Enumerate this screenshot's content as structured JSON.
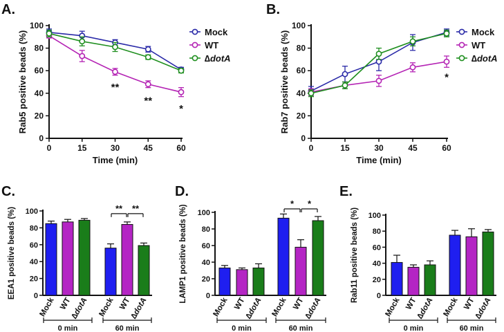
{
  "colors": {
    "mock": "#2a2aa8",
    "wt": "#b423b4",
    "dotA": "#1f8f1f",
    "bar_mock": "#1f1ff0",
    "bar_wt": "#b425c4",
    "bar_dotA": "#1a7d1a",
    "ink": "#111111"
  },
  "chart_data": [
    {
      "id": "A",
      "panel_label": "A.",
      "type": "line",
      "xlabel": "Time (min)",
      "ylabel": "Rab5 positive beads (%)",
      "x": [
        0,
        15,
        30,
        45,
        60
      ],
      "xticks": [
        "0",
        "15",
        "30",
        "45",
        "60"
      ],
      "yticks": [
        "0",
        "20",
        "40",
        "60",
        "80",
        "100"
      ],
      "xlim": [
        0,
        60
      ],
      "ylim": [
        0,
        100
      ],
      "series": [
        {
          "key": "mock",
          "name": "Mock",
          "values": [
            94,
            91,
            85,
            79,
            61
          ],
          "err": [
            3,
            4,
            2.5,
            2.5,
            2
          ]
        },
        {
          "key": "wt",
          "name": "WT",
          "values": [
            91,
            73,
            59,
            48,
            41
          ],
          "err": [
            2,
            5,
            3,
            3,
            4
          ]
        },
        {
          "key": "dotA",
          "name": "∆dotA",
          "values": [
            93,
            86,
            81,
            72,
            60
          ],
          "err": [
            3,
            4,
            4,
            2,
            2
          ]
        }
      ],
      "annotations": [
        {
          "x": 30,
          "y": 46,
          "text": "**"
        },
        {
          "x": 45,
          "y": 34,
          "text": "**"
        },
        {
          "x": 60,
          "y": 27,
          "text": "*"
        }
      ],
      "legend_position": "top-right"
    },
    {
      "id": "B",
      "panel_label": "B.",
      "type": "line",
      "xlabel": "Time (min)",
      "ylabel": "Rab7 positive beads (%)",
      "x": [
        0,
        15,
        30,
        45,
        60
      ],
      "xticks": [
        "0",
        "15",
        "30",
        "45",
        "60"
      ],
      "yticks": [
        "0",
        "20",
        "40",
        "60",
        "80",
        "100"
      ],
      "xlim": [
        0,
        60
      ],
      "ylim": [
        0,
        100
      ],
      "series": [
        {
          "key": "mock",
          "name": "Mock",
          "values": [
            42,
            57,
            68,
            85,
            94
          ],
          "err": [
            4,
            7,
            8,
            7,
            3
          ]
        },
        {
          "key": "wt",
          "name": "WT",
          "values": [
            41,
            47,
            51,
            63,
            68
          ],
          "err": [
            3,
            3,
            5,
            4,
            5
          ]
        },
        {
          "key": "dotA",
          "name": "∆dotA",
          "values": [
            40,
            47,
            75,
            86,
            93
          ],
          "err": [
            3,
            3,
            5,
            4,
            3
          ]
        }
      ],
      "annotations": [
        {
          "x": 60,
          "y": 55,
          "text": "*"
        }
      ],
      "legend_position": "top-right"
    },
    {
      "id": "C",
      "panel_label": "C.",
      "type": "bar",
      "ylabel": "EEA1 positive beads (%)",
      "yticks": [
        "0",
        "20",
        "40",
        "60",
        "80",
        "100"
      ],
      "ylim": [
        0,
        100
      ],
      "groups": [
        {
          "label": "0 min",
          "bars": [
            {
              "key": "mock",
              "label": "Mock",
              "value": 85,
              "err": 3
            },
            {
              "key": "wt",
              "label": "WT",
              "value": 87,
              "err": 3
            },
            {
              "key": "dotA",
              "label": "∆dotA",
              "value": 89,
              "err": 2
            }
          ]
        },
        {
          "label": "60 min",
          "bars": [
            {
              "key": "mock",
              "label": "Mock",
              "value": 56,
              "err": 5
            },
            {
              "key": "wt",
              "label": "WT",
              "value": 84,
              "err": 3
            },
            {
              "key": "dotA",
              "label": "∆dotA",
              "value": 59,
              "err": 3
            }
          ]
        }
      ],
      "significance": [
        {
          "from": 0,
          "to": 1,
          "text": "**"
        },
        {
          "from": 1,
          "to": 2,
          "text": "**"
        }
      ]
    },
    {
      "id": "D",
      "panel_label": "D.",
      "type": "bar",
      "ylabel": "LAMP1 positive beads (%)",
      "yticks": [
        "0",
        "20",
        "40",
        "60",
        "80",
        "100"
      ],
      "ylim": [
        0,
        100
      ],
      "groups": [
        {
          "label": "0 min",
          "bars": [
            {
              "key": "mock",
              "label": "Mock",
              "value": 33,
              "err": 3
            },
            {
              "key": "wt",
              "label": "WT",
              "value": 31,
              "err": 2
            },
            {
              "key": "dotA",
              "label": "∆dotA",
              "value": 33,
              "err": 5
            }
          ]
        },
        {
          "label": "60 min",
          "bars": [
            {
              "key": "mock",
              "label": "Mock",
              "value": 93,
              "err": 5
            },
            {
              "key": "wt",
              "label": "WT",
              "value": 58,
              "err": 9
            },
            {
              "key": "dotA",
              "label": "∆dotA",
              "value": 90,
              "err": 5
            }
          ]
        }
      ],
      "significance": [
        {
          "from": 0,
          "to": 1,
          "text": "*"
        },
        {
          "from": 1,
          "to": 2,
          "text": "*"
        }
      ]
    },
    {
      "id": "E",
      "panel_label": "E.",
      "type": "bar",
      "ylabel": "Rab11 positive beads (%)",
      "yticks": [
        "0",
        "20",
        "40",
        "60",
        "80",
        "100"
      ],
      "ylim": [
        0,
        100
      ],
      "groups": [
        {
          "label": "0 min",
          "bars": [
            {
              "key": "mock",
              "label": "Mock",
              "value": 41,
              "err": 9
            },
            {
              "key": "wt",
              "label": "WT",
              "value": 35,
              "err": 3
            },
            {
              "key": "dotA",
              "label": "∆dotA",
              "value": 38,
              "err": 5
            }
          ]
        },
        {
          "label": "60 min",
          "bars": [
            {
              "key": "mock",
              "label": "Mock",
              "value": 75,
              "err": 6
            },
            {
              "key": "wt",
              "label": "WT",
              "value": 73,
              "err": 10
            },
            {
              "key": "dotA",
              "label": "∆dotA",
              "value": 79,
              "err": 3
            }
          ]
        }
      ],
      "significance": []
    }
  ]
}
